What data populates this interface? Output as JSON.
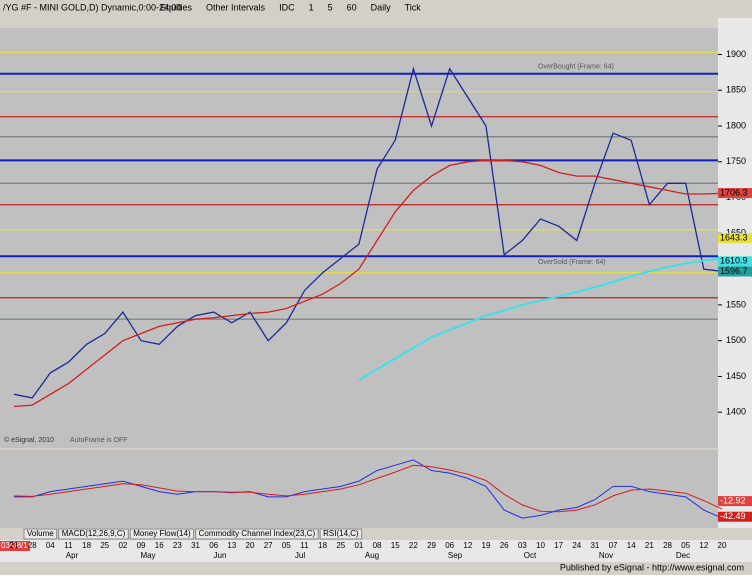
{
  "toolbar": {
    "symbol": "/YG #F - MINI GOLD,D) Dynamic,0:00-24:00",
    "items": [
      "Equities",
      "Other Intervals",
      "IDC",
      "1",
      "5",
      "60",
      "Daily",
      "Tick"
    ]
  },
  "chart_data": {
    "type": "line",
    "cursor_date": "03/08/11",
    "categories": [
      "21",
      "28",
      "04",
      "11",
      "18",
      "25",
      "02",
      "09",
      "16",
      "23",
      "31",
      "06",
      "13",
      "20",
      "27",
      "05",
      "11",
      "18",
      "25",
      "01",
      "08",
      "15",
      "22",
      "29",
      "06",
      "12",
      "19",
      "26",
      "03",
      "10",
      "17",
      "24",
      "31",
      "07",
      "14",
      "21",
      "28",
      "05",
      "12",
      "20"
    ],
    "months": [
      "Apr",
      "May",
      "Jun",
      "Jul",
      "Aug",
      "Sep",
      "Oct",
      "Nov",
      "Dec"
    ],
    "series": [
      {
        "name": "close",
        "color": "#1a2a9a",
        "values": [
          1425,
          1420,
          1455,
          1470,
          1495,
          1510,
          1540,
          1500,
          1495,
          1520,
          1535,
          1540,
          1525,
          1540,
          1500,
          1525,
          1570,
          1595,
          1615,
          1635,
          1740,
          1780,
          1880,
          1800,
          1880,
          1840,
          1800,
          1620,
          1640,
          1670,
          1660,
          1640,
          1720,
          1790,
          1780,
          1690,
          1720,
          1720,
          1600,
          1597
        ]
      },
      {
        "name": "ma",
        "color": "#d02020",
        "values": [
          1408,
          1410,
          1425,
          1440,
          1460,
          1480,
          1500,
          1510,
          1520,
          1525,
          1530,
          1532,
          1535,
          1538,
          1540,
          1545,
          1555,
          1565,
          1580,
          1600,
          1640,
          1680,
          1710,
          1730,
          1745,
          1750,
          1752,
          1752,
          1750,
          1745,
          1735,
          1730,
          1730,
          1725,
          1720,
          1715,
          1710,
          1705,
          1705,
          1706
        ]
      },
      {
        "name": "ma2",
        "color": "#40e0e8",
        "values": [
          null,
          null,
          null,
          null,
          null,
          null,
          null,
          null,
          null,
          null,
          null,
          null,
          null,
          null,
          null,
          null,
          null,
          null,
          null,
          1445,
          1460,
          1475,
          1490,
          1505,
          1515,
          1525,
          1535,
          1542,
          1550,
          1556,
          1562,
          1568,
          1575,
          1582,
          1590,
          1597,
          1603,
          1608,
          1612,
          1615
        ]
      }
    ],
    "ylim": [
      1350,
      1937
    ],
    "yticks": [
      1400,
      1450,
      1500,
      1550,
      1600,
      1650,
      1700,
      1750,
      1800,
      1850,
      1900
    ],
    "levels": [
      {
        "value": 1903,
        "color": "#e8e040"
      },
      {
        "value": 1873,
        "color": "#1020c0"
      },
      {
        "value": 1848,
        "color": "#e8e040"
      },
      {
        "value": 1813,
        "color": "#c02020"
      },
      {
        "value": 1785,
        "color": "#708080"
      },
      {
        "value": 1752,
        "color": "#1020c0"
      },
      {
        "value": 1720,
        "color": "#708080"
      },
      {
        "value": 1690,
        "color": "#c02020"
      },
      {
        "value": 1655,
        "color": "#e8e040"
      },
      {
        "value": 1618,
        "color": "#1020c0"
      },
      {
        "value": 1595,
        "color": "#e8e040"
      },
      {
        "value": 1560,
        "color": "#c02020"
      },
      {
        "value": 1530,
        "color": "#708080"
      }
    ],
    "price_flags": [
      {
        "value": 1706.3,
        "color": "#e04040"
      },
      {
        "value": 1643.3,
        "color": "#e8e040"
      },
      {
        "value": 1610.9,
        "color": "#40e0e8"
      },
      {
        "value": 1596.7,
        "color": "#20a0a0"
      }
    ],
    "annotations": [
      "OverBought (Frame: 64)",
      "OverSold (Frame: 64)",
      "AutoFrame is OFF",
      "© eSignal, 2010"
    ],
    "macd": {
      "ylim": [
        -60,
        80
      ],
      "series": [
        {
          "name": "macd",
          "color": "#2030e0",
          "values": [
            -5,
            -5,
            5,
            10,
            15,
            20,
            25,
            15,
            5,
            0,
            5,
            5,
            3,
            5,
            -5,
            -5,
            5,
            10,
            15,
            25,
            45,
            55,
            65,
            45,
            40,
            30,
            15,
            -30,
            -45,
            -40,
            -30,
            -25,
            -10,
            15,
            15,
            5,
            0,
            -5,
            -30,
            -45
          ]
        },
        {
          "name": "signal",
          "color": "#d02020",
          "values": [
            -3,
            -4,
            0,
            5,
            10,
            15,
            20,
            18,
            12,
            6,
            5,
            5,
            4,
            4,
            0,
            -3,
            0,
            5,
            10,
            18,
            30,
            42,
            55,
            52,
            46,
            38,
            26,
            0,
            -20,
            -32,
            -33,
            -30,
            -20,
            -3,
            8,
            10,
            6,
            2,
            -12,
            -28
          ]
        }
      ],
      "flags": [
        {
          "value": -12.92,
          "color": "#e04040"
        },
        {
          "value": -42.49,
          "color": "#d02020"
        }
      ]
    }
  },
  "tabs": [
    "Volume",
    "MACD(12,26,9,C)",
    "Money Flow(14)",
    "Commodity Channel Index(23,C)",
    "RSI(14,C)"
  ],
  "footer": "Published by eSignal - http://www.esignal.com"
}
